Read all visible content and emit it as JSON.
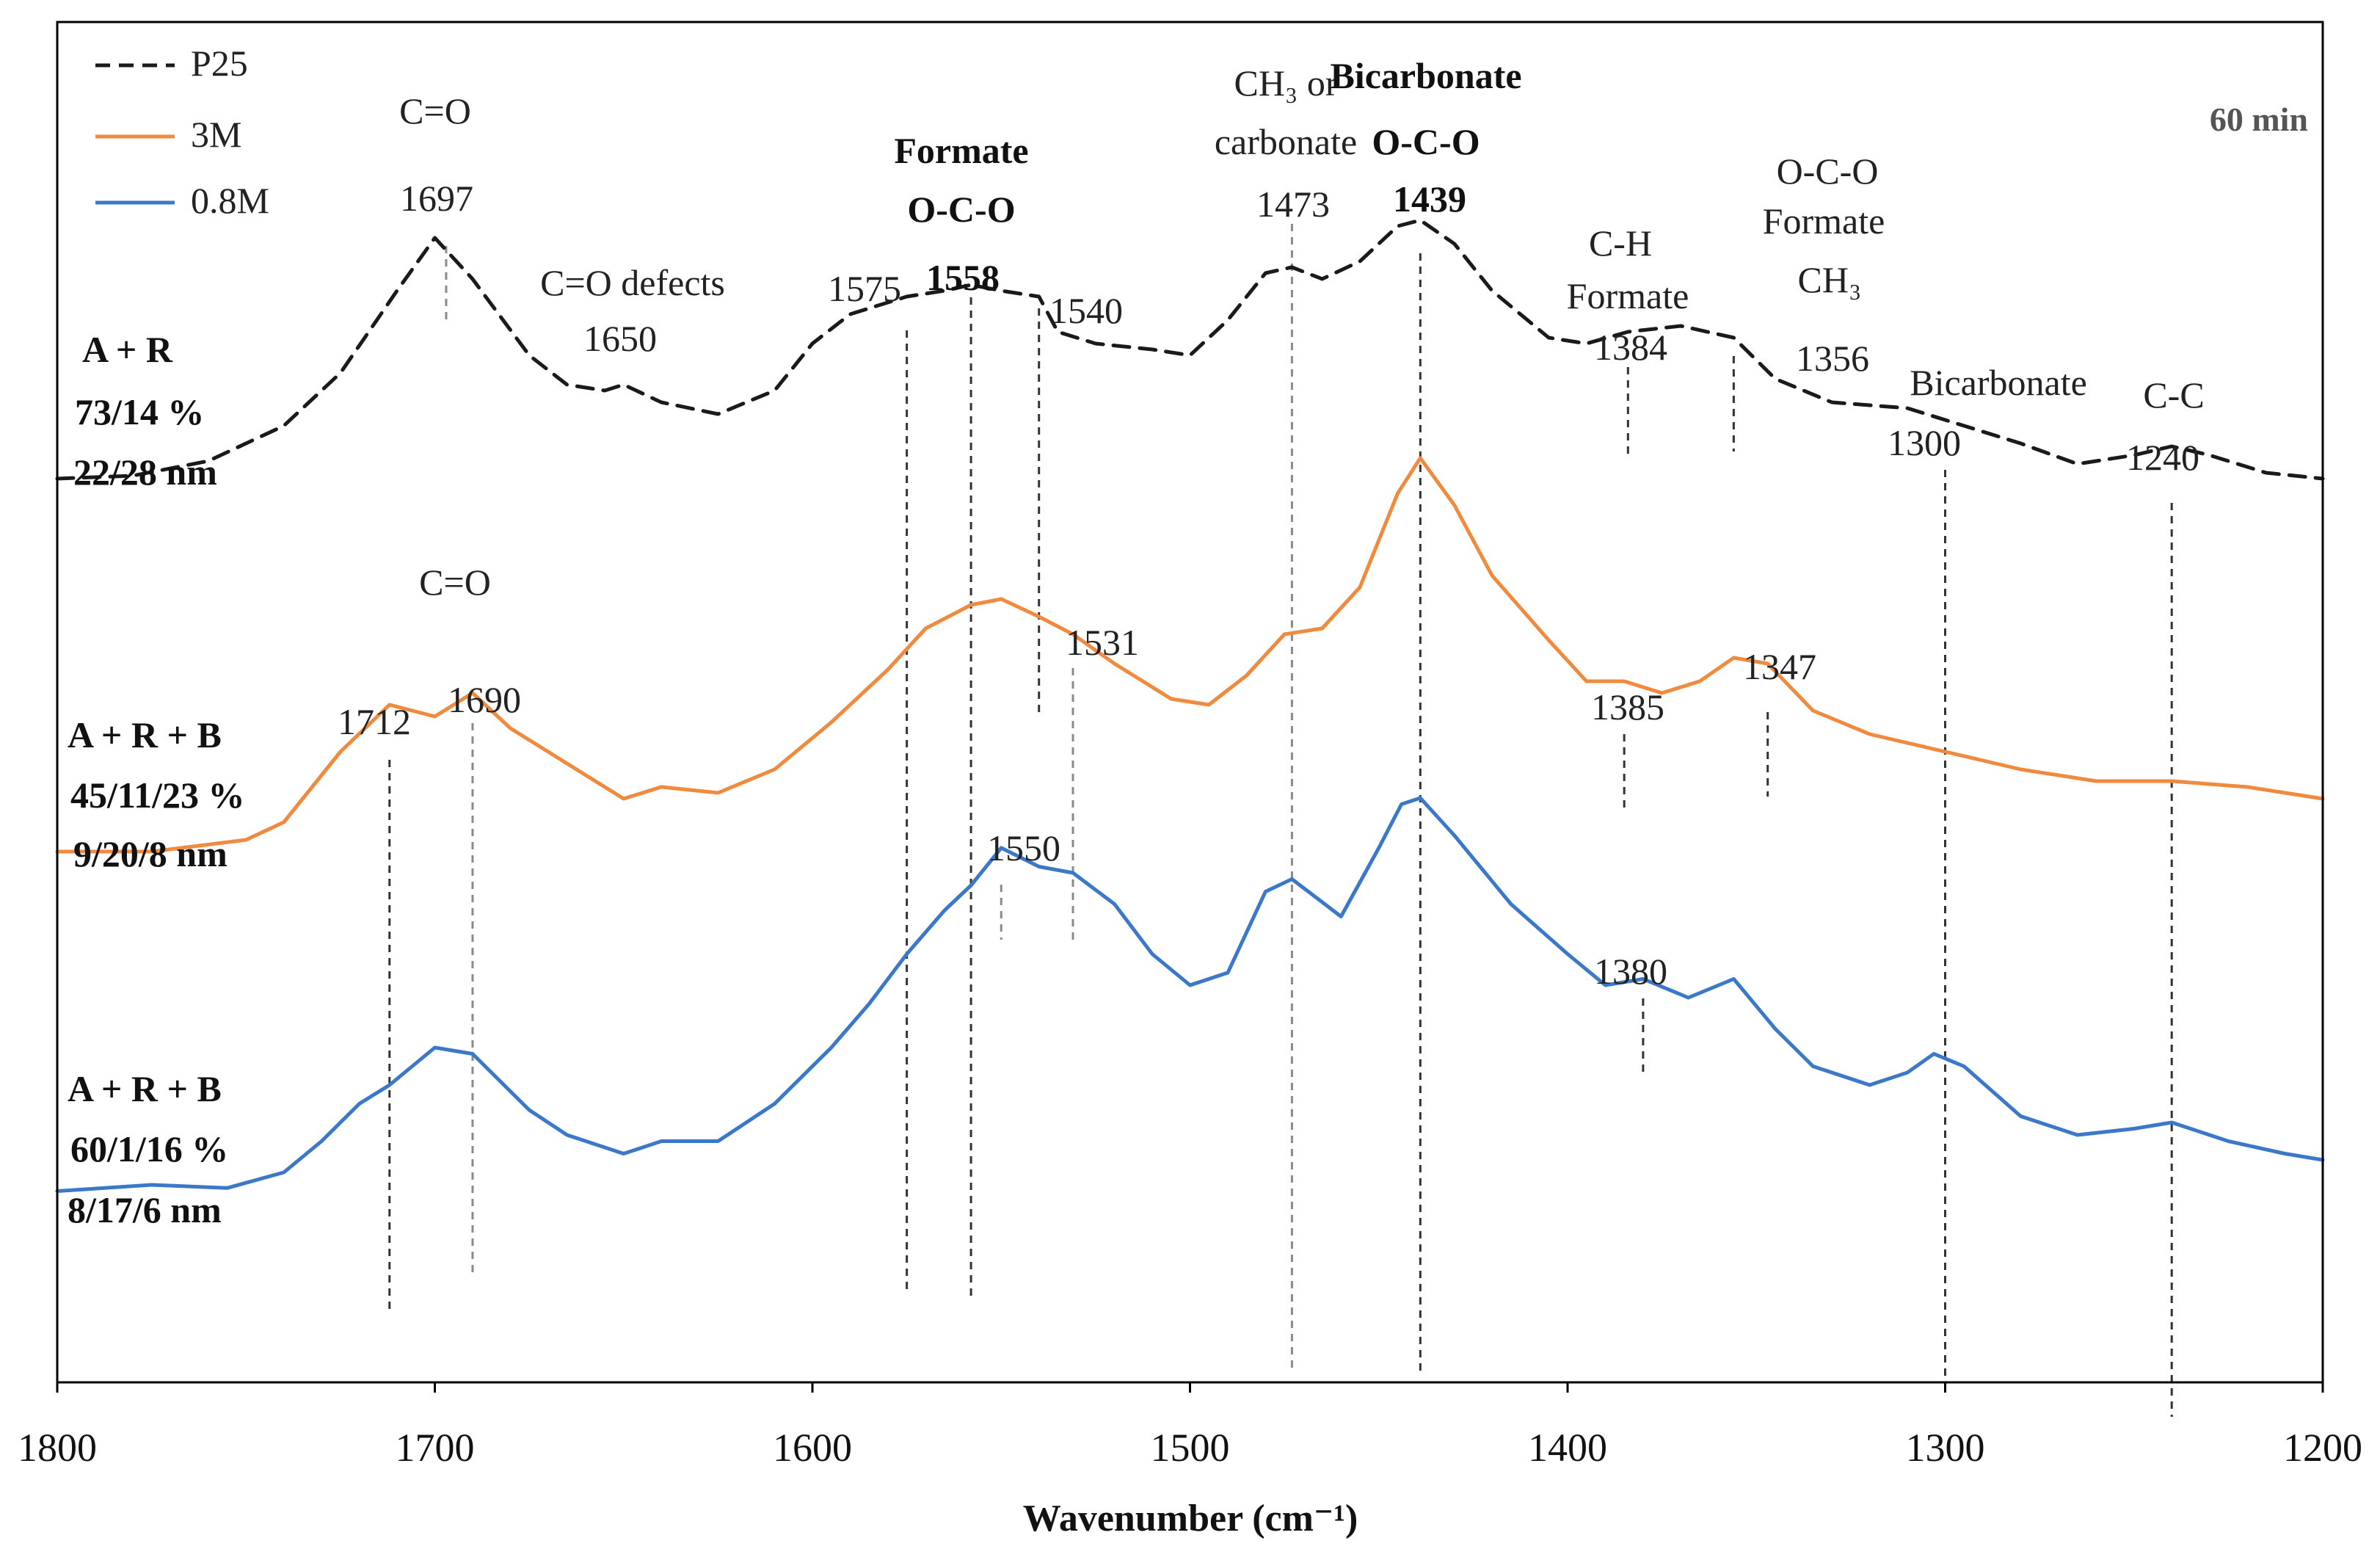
{
  "chart_data": {
    "type": "line",
    "title": "",
    "time_label": "60 min",
    "xlabel": "Wavenumber (cm⁻¹)",
    "ylabel": "",
    "xlim": [
      1800,
      1200
    ],
    "x_ticks": [
      1800,
      1700,
      1600,
      1500,
      1400,
      1300,
      1200
    ],
    "grid": false,
    "legend_position": "top-left",
    "series": [
      {
        "name": "P25",
        "color": "#1a1a1a",
        "dash": true,
        "points": [
          [
            1800,
            0.06
          ],
          [
            1780,
            0.065
          ],
          [
            1760,
            0.09
          ],
          [
            1740,
            0.15
          ],
          [
            1725,
            0.24
          ],
          [
            1710,
            0.38
          ],
          [
            1700,
            0.47
          ],
          [
            1690,
            0.4
          ],
          [
            1675,
            0.27
          ],
          [
            1665,
            0.22
          ],
          [
            1655,
            0.21
          ],
          [
            1650,
            0.22
          ],
          [
            1640,
            0.19
          ],
          [
            1625,
            0.17
          ],
          [
            1610,
            0.21
          ],
          [
            1600,
            0.29
          ],
          [
            1590,
            0.34
          ],
          [
            1575,
            0.37
          ],
          [
            1565,
            0.38
          ],
          [
            1558,
            0.39
          ],
          [
            1550,
            0.38
          ],
          [
            1540,
            0.37
          ],
          [
            1535,
            0.31
          ],
          [
            1525,
            0.29
          ],
          [
            1510,
            0.28
          ],
          [
            1500,
            0.27
          ],
          [
            1490,
            0.33
          ],
          [
            1480,
            0.41
          ],
          [
            1473,
            0.42
          ],
          [
            1465,
            0.4
          ],
          [
            1455,
            0.43
          ],
          [
            1445,
            0.49
          ],
          [
            1439,
            0.5
          ],
          [
            1430,
            0.46
          ],
          [
            1420,
            0.38
          ],
          [
            1405,
            0.3
          ],
          [
            1395,
            0.29
          ],
          [
            1384,
            0.31
          ],
          [
            1370,
            0.32
          ],
          [
            1356,
            0.3
          ],
          [
            1345,
            0.23
          ],
          [
            1330,
            0.19
          ],
          [
            1310,
            0.18
          ],
          [
            1300,
            0.16
          ],
          [
            1280,
            0.12
          ],
          [
            1265,
            0.085
          ],
          [
            1250,
            0.1
          ],
          [
            1240,
            0.115
          ],
          [
            1230,
            0.1
          ],
          [
            1215,
            0.07
          ],
          [
            1200,
            0.06
          ]
        ]
      },
      {
        "name": "3M",
        "color": "#F08A3E",
        "dash": false,
        "points": [
          [
            1800,
            0.05
          ],
          [
            1775,
            0.05
          ],
          [
            1750,
            0.07
          ],
          [
            1740,
            0.1
          ],
          [
            1725,
            0.22
          ],
          [
            1712,
            0.3
          ],
          [
            1700,
            0.28
          ],
          [
            1690,
            0.32
          ],
          [
            1680,
            0.26
          ],
          [
            1670,
            0.22
          ],
          [
            1660,
            0.18
          ],
          [
            1650,
            0.14
          ],
          [
            1640,
            0.16
          ],
          [
            1625,
            0.15
          ],
          [
            1610,
            0.19
          ],
          [
            1595,
            0.27
          ],
          [
            1580,
            0.36
          ],
          [
            1570,
            0.43
          ],
          [
            1558,
            0.47
          ],
          [
            1550,
            0.48
          ],
          [
            1540,
            0.45
          ],
          [
            1531,
            0.42
          ],
          [
            1520,
            0.37
          ],
          [
            1505,
            0.31
          ],
          [
            1495,
            0.3
          ],
          [
            1485,
            0.35
          ],
          [
            1475,
            0.42
          ],
          [
            1465,
            0.43
          ],
          [
            1455,
            0.5
          ],
          [
            1445,
            0.66
          ],
          [
            1439,
            0.72
          ],
          [
            1430,
            0.64
          ],
          [
            1420,
            0.52
          ],
          [
            1405,
            0.41
          ],
          [
            1395,
            0.34
          ],
          [
            1385,
            0.34
          ],
          [
            1375,
            0.32
          ],
          [
            1365,
            0.34
          ],
          [
            1356,
            0.38
          ],
          [
            1347,
            0.37
          ],
          [
            1335,
            0.29
          ],
          [
            1320,
            0.25
          ],
          [
            1300,
            0.22
          ],
          [
            1280,
            0.19
          ],
          [
            1260,
            0.17
          ],
          [
            1240,
            0.17
          ],
          [
            1220,
            0.16
          ],
          [
            1200,
            0.14
          ]
        ]
      },
      {
        "name": "0.8M",
        "color": "#3B78C9",
        "dash": false,
        "points": [
          [
            1800,
            0.05
          ],
          [
            1775,
            0.06
          ],
          [
            1755,
            0.055
          ],
          [
            1740,
            0.08
          ],
          [
            1730,
            0.13
          ],
          [
            1720,
            0.19
          ],
          [
            1712,
            0.22
          ],
          [
            1700,
            0.28
          ],
          [
            1690,
            0.27
          ],
          [
            1675,
            0.18
          ],
          [
            1665,
            0.14
          ],
          [
            1650,
            0.11
          ],
          [
            1640,
            0.13
          ],
          [
            1625,
            0.13
          ],
          [
            1610,
            0.19
          ],
          [
            1595,
            0.28
          ],
          [
            1585,
            0.35
          ],
          [
            1575,
            0.43
          ],
          [
            1565,
            0.5
          ],
          [
            1558,
            0.54
          ],
          [
            1550,
            0.6
          ],
          [
            1540,
            0.57
          ],
          [
            1531,
            0.56
          ],
          [
            1520,
            0.51
          ],
          [
            1510,
            0.43
          ],
          [
            1500,
            0.38
          ],
          [
            1490,
            0.4
          ],
          [
            1480,
            0.53
          ],
          [
            1473,
            0.55
          ],
          [
            1460,
            0.49
          ],
          [
            1450,
            0.6
          ],
          [
            1444,
            0.67
          ],
          [
            1439,
            0.68
          ],
          [
            1430,
            0.62
          ],
          [
            1415,
            0.51
          ],
          [
            1400,
            0.43
          ],
          [
            1390,
            0.38
          ],
          [
            1380,
            0.39
          ],
          [
            1368,
            0.36
          ],
          [
            1356,
            0.39
          ],
          [
            1345,
            0.31
          ],
          [
            1335,
            0.25
          ],
          [
            1320,
            0.22
          ],
          [
            1310,
            0.24
          ],
          [
            1303,
            0.27
          ],
          [
            1295,
            0.25
          ],
          [
            1280,
            0.17
          ],
          [
            1265,
            0.14
          ],
          [
            1250,
            0.15
          ],
          [
            1240,
            0.16
          ],
          [
            1225,
            0.13
          ],
          [
            1210,
            0.11
          ],
          [
            1200,
            0.1
          ]
        ]
      }
    ],
    "reference_lines": [
      {
        "x": 1712,
        "label": "1712"
      },
      {
        "x": 1697,
        "label": "1697"
      },
      {
        "x": 1690,
        "label": "1690"
      },
      {
        "x": 1575,
        "label": "1575"
      },
      {
        "x": 1558,
        "label": "1558"
      },
      {
        "x": 1550,
        "label": "1550"
      },
      {
        "x": 1540,
        "label": "1540"
      },
      {
        "x": 1531,
        "label": "1531"
      },
      {
        "x": 1473,
        "label": "1473"
      },
      {
        "x": 1439,
        "label": "1439"
      },
      {
        "x": 1385,
        "label": "1385"
      },
      {
        "x": 1384,
        "label": "1384"
      },
      {
        "x": 1380,
        "label": "1380"
      },
      {
        "x": 1356,
        "label": "1356"
      },
      {
        "x": 1347,
        "label": "1347"
      },
      {
        "x": 1300,
        "label": "1300"
      },
      {
        "x": 1240,
        "label": "1240"
      }
    ],
    "annotations": [
      {
        "text": "C=O",
        "bold": false
      },
      {
        "text": "C=O defects",
        "bold": false
      },
      {
        "text": "1650",
        "bold": false
      },
      {
        "text": "Formate",
        "bold": true
      },
      {
        "text": "O-C-O",
        "bold": true
      },
      {
        "text": "CH₃ or",
        "bold": false
      },
      {
        "text": "carbonate",
        "bold": false
      },
      {
        "text": "Bicarbonate",
        "bold": true
      },
      {
        "text": "O-C-O",
        "bold": true
      },
      {
        "text": "C-H",
        "bold": false
      },
      {
        "text": "Formate",
        "bold": false
      },
      {
        "text": "O-C-O",
        "bold": false
      },
      {
        "text": "Formate",
        "bold": false
      },
      {
        "text": "CH₃",
        "bold": false
      },
      {
        "text": "Bicarbonate",
        "bold": false
      },
      {
        "text": "C-C",
        "bold": false
      },
      {
        "text": "C=O",
        "bold": false
      }
    ],
    "sample_labels": [
      {
        "lines": [
          "A + R",
          "73/14 %",
          "22/28 nm"
        ]
      },
      {
        "lines": [
          "A + R + B",
          "45/11/23 %",
          "9/20/8 nm"
        ]
      },
      {
        "lines": [
          "A + R + B",
          "60/1/16 %",
          "8/17/6 nm"
        ]
      }
    ]
  }
}
